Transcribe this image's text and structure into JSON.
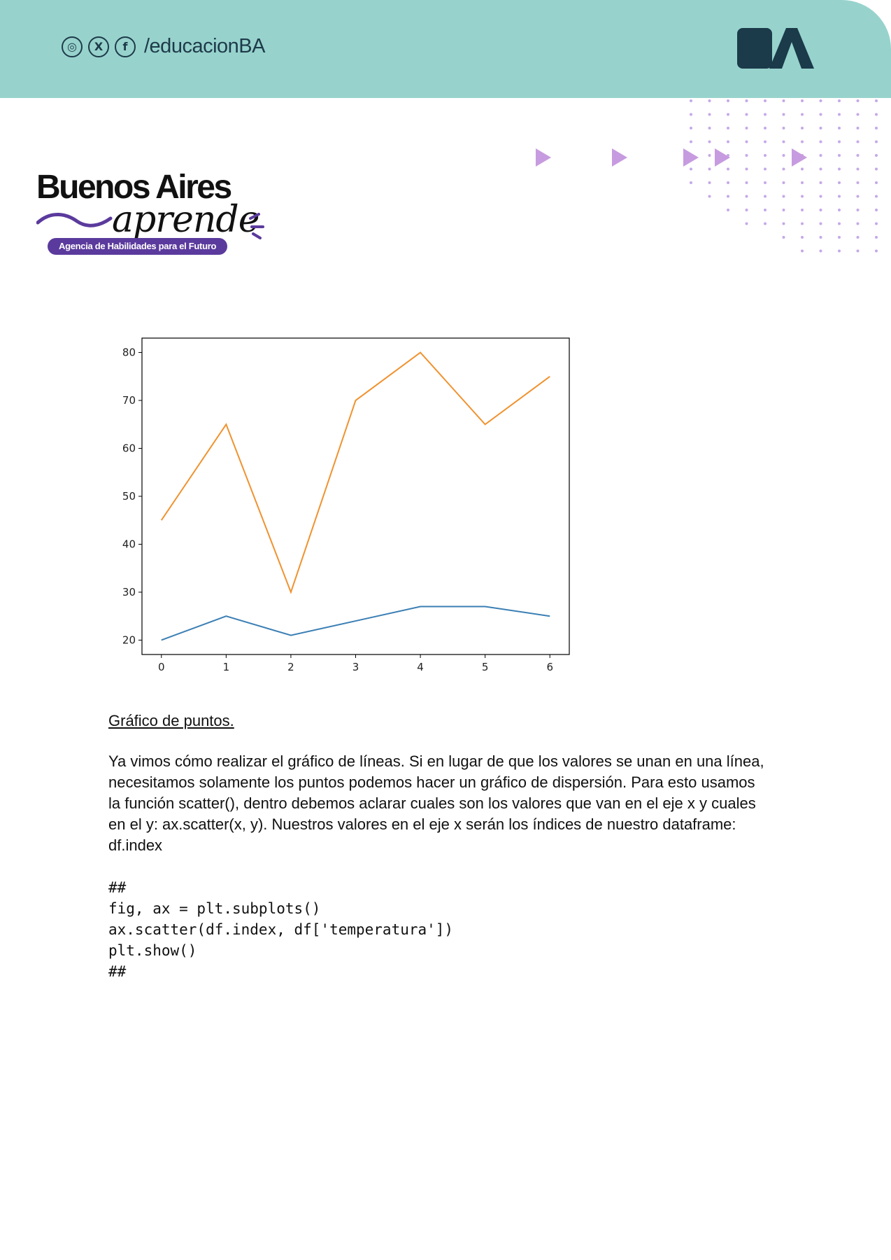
{
  "header": {
    "social_handle": "/educacionBA",
    "social_icons": [
      "instagram-icon",
      "x-icon",
      "facebook-icon"
    ],
    "brand_logo": "BA",
    "background_color": "#97d3cc"
  },
  "logo": {
    "title": "Buenos Aires",
    "script": "aprende",
    "tagline": "Agencia de Habilidades para el Futuro",
    "accent_color": "#5b3a9d"
  },
  "chart_data": {
    "type": "line",
    "x": [
      0,
      1,
      2,
      3,
      4,
      5,
      6
    ],
    "series": [
      {
        "values": [
          20,
          25,
          21,
          24,
          27,
          27,
          25
        ],
        "color": "#3b7fb4"
      },
      {
        "values": [
          45,
          65,
          30,
          70,
          80,
          65,
          75
        ],
        "color": "#f0922f"
      }
    ],
    "xlim": [
      -0.3,
      6.3
    ],
    "ylim": [
      17,
      83
    ],
    "xticks": [
      0,
      1,
      2,
      3,
      4,
      5,
      6
    ],
    "yticks": [
      20,
      30,
      40,
      50,
      60,
      70,
      80
    ],
    "grid": false
  },
  "section": {
    "title": "Gráfico de puntos.",
    "paragraph_lines": [
      "Ya vimos cómo realizar el gráfico de líneas. Si en lugar de que los valores se unan en una línea,",
      "necesitamos solamente los puntos podemos hacer un gráfico de dispersión. Para esto usamos",
      "la función scatter(), dentro debemos aclarar cuales son los valores que van en el eje x y cuales",
      "en el y: ax.scatter(x, y). Nuestros valores en el eje x serán los índices de nuestro dataframe:",
      "df.index"
    ],
    "code_lines": [
      "##",
      "fig, ax = plt.subplots()",
      "ax.scatter(df.index, df['temperatura'])",
      "plt.show()",
      "##"
    ]
  }
}
